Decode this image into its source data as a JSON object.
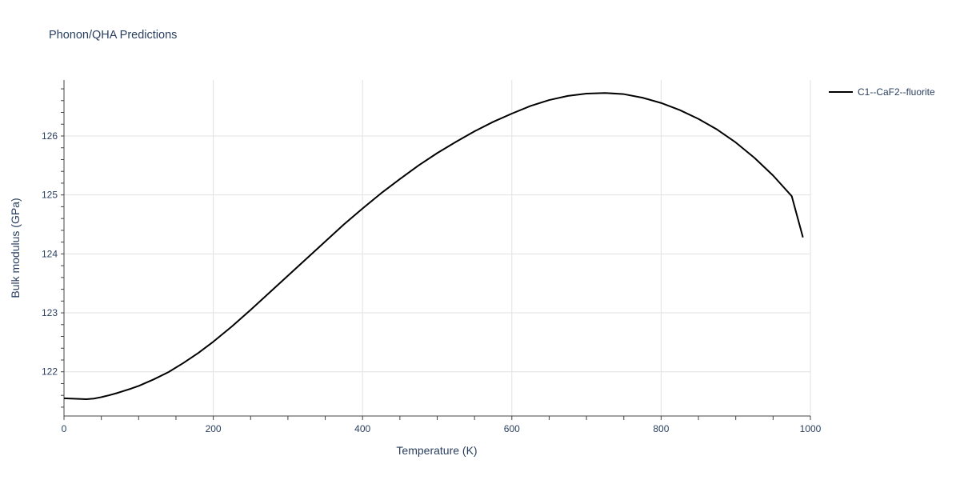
{
  "chart_data": {
    "type": "line",
    "title": "Phonon/QHA Predictions",
    "xlabel": "Temperature (K)",
    "ylabel": "Bulk modulus (GPa)",
    "xlim": [
      0,
      1000
    ],
    "ylim": [
      121.25,
      126.95
    ],
    "x_ticks": [
      0,
      200,
      400,
      600,
      800,
      1000
    ],
    "y_ticks": [
      122,
      123,
      124,
      125,
      126
    ],
    "grid": true,
    "legend_position": "top-right",
    "series": [
      {
        "name": "C1--CaF2--fluorite",
        "color": "#000000",
        "x": [
          0,
          10,
          20,
          30,
          40,
          50,
          60,
          70,
          80,
          90,
          100,
          120,
          140,
          160,
          180,
          200,
          225,
          250,
          275,
          300,
          325,
          350,
          375,
          400,
          425,
          450,
          475,
          500,
          525,
          550,
          575,
          600,
          625,
          650,
          675,
          700,
          725,
          750,
          775,
          800,
          825,
          850,
          875,
          900,
          925,
          950,
          975,
          990
        ],
        "y": [
          121.55,
          121.545,
          121.54,
          121.535,
          121.545,
          121.57,
          121.6,
          121.635,
          121.675,
          121.715,
          121.76,
          121.87,
          121.995,
          122.15,
          122.32,
          122.51,
          122.77,
          123.05,
          123.34,
          123.63,
          123.92,
          124.21,
          124.5,
          124.77,
          125.03,
          125.27,
          125.5,
          125.71,
          125.9,
          126.08,
          126.24,
          126.38,
          126.51,
          126.61,
          126.68,
          126.72,
          126.73,
          126.71,
          126.65,
          126.56,
          126.44,
          126.29,
          126.11,
          125.89,
          125.63,
          125.33,
          124.98,
          124.28
        ]
      }
    ]
  }
}
